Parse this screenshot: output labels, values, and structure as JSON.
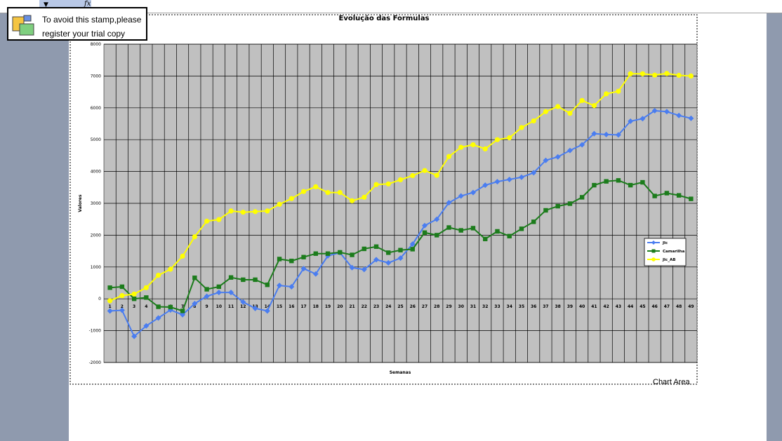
{
  "stamp": {
    "line1": "To avoid this stamp,please",
    "line2": "register your trial copy"
  },
  "toolbar": {
    "fx_symbol": "fx"
  },
  "chart_area_label": "Chart Area",
  "colors": {
    "plot_background": "#c0c0c0",
    "series_jlc": "#4a7df0",
    "series_camarilha": "#1c7c1c",
    "series_jlc_ab": "#ffff00"
  },
  "chart_data": {
    "type": "line",
    "title": "Evolução das Formulas",
    "xlabel": "Semanas",
    "ylabel": "Valores",
    "ylim": [
      -2000,
      8000
    ],
    "yticks": [
      -2000,
      -1000,
      0,
      1000,
      2000,
      3000,
      4000,
      5000,
      6000,
      7000,
      8000
    ],
    "grid": true,
    "legend_position": "right",
    "categories": [
      "1",
      "2",
      "3",
      "4",
      "5",
      "6",
      "7",
      "8",
      "9",
      "10",
      "11",
      "12",
      "13",
      "14",
      "15",
      "16",
      "17",
      "18",
      "19",
      "20",
      "21",
      "22",
      "23",
      "24",
      "25",
      "26",
      "27",
      "28",
      "29",
      "30",
      "31",
      "32",
      "33",
      "34",
      "35",
      "36",
      "37",
      "38",
      "39",
      "40",
      "41",
      "42",
      "43",
      "44",
      "45",
      "46",
      "47",
      "48",
      "49"
    ],
    "series": [
      {
        "name": "Jlc",
        "color": "#4a7df0",
        "marker": "diamond",
        "values": [
          -380,
          -360,
          -1180,
          -850,
          -600,
          -350,
          -500,
          -150,
          80,
          200,
          200,
          -100,
          -300,
          -380,
          420,
          380,
          950,
          780,
          1350,
          1450,
          980,
          920,
          1230,
          1130,
          1280,
          1720,
          2300,
          2500,
          3020,
          3230,
          3340,
          3570,
          3680,
          3750,
          3820,
          3960,
          4350,
          4460,
          4660,
          4840,
          5190,
          5160,
          5150,
          5580,
          5660,
          5910,
          5880,
          5760,
          5670
        ]
      },
      {
        "name": "Camarilha",
        "color": "#1c7c1c",
        "marker": "square",
        "values": [
          350,
          380,
          0,
          40,
          -250,
          -260,
          -380,
          660,
          300,
          380,
          670,
          600,
          600,
          440,
          1250,
          1190,
          1310,
          1420,
          1420,
          1460,
          1380,
          1570,
          1640,
          1450,
          1530,
          1560,
          2080,
          2000,
          2240,
          2150,
          2220,
          1880,
          2120,
          1970,
          2200,
          2420,
          2780,
          2910,
          2990,
          3190,
          3570,
          3690,
          3720,
          3570,
          3660,
          3230,
          3320,
          3250,
          3140
        ]
      },
      {
        "name": "Jlc_AB",
        "color": "#ffff00",
        "marker": "circle",
        "values": [
          -60,
          100,
          150,
          350,
          740,
          930,
          1340,
          1950,
          2440,
          2490,
          2760,
          2720,
          2740,
          2760,
          2970,
          3150,
          3370,
          3520,
          3340,
          3340,
          3080,
          3190,
          3590,
          3610,
          3740,
          3870,
          4030,
          3880,
          4470,
          4760,
          4840,
          4710,
          5000,
          5060,
          5380,
          5590,
          5880,
          6040,
          5830,
          6230,
          6070,
          6440,
          6520,
          7070,
          7070,
          7030,
          7080,
          7020,
          7000
        ]
      }
    ]
  }
}
